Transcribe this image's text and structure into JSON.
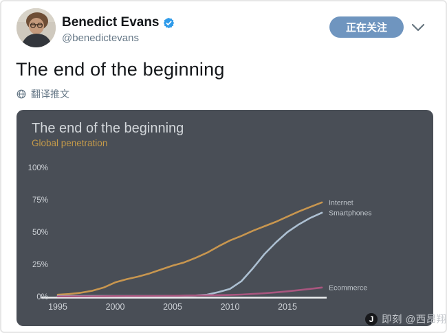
{
  "header": {
    "author": "Benedict Evans",
    "handle": "@benedictevans",
    "follow_button_label": "正在关注",
    "follow_button_color": "#6f95bf",
    "verified_color": "#2f9bea"
  },
  "tweet": {
    "text": "The end of the beginning",
    "translate_label": "翻译推文"
  },
  "watermark": {
    "logo_glyph": "J",
    "label": "即刻 @西昂翔"
  },
  "chart_data": {
    "type": "line",
    "title": "The end of the beginning",
    "subtitle": "Global penetration",
    "background": "#494e56",
    "title_color": "#d3d7db",
    "subtitle_color": "#c49a4a",
    "grid": false,
    "legend_position": "line-end-labels",
    "ylim": [
      0,
      100
    ],
    "yticks": [
      {
        "label": "0%",
        "value": 0
      },
      {
        "label": "25%",
        "value": 25
      },
      {
        "label": "50%",
        "value": 50
      },
      {
        "label": "75%",
        "value": 75
      },
      {
        "label": "100%",
        "value": 100
      }
    ],
    "xticks": [
      1995,
      2000,
      2005,
      2010,
      2015
    ],
    "years": [
      1995,
      1996,
      1997,
      1998,
      1999,
      2000,
      2001,
      2002,
      2003,
      2004,
      2005,
      2006,
      2007,
      2008,
      2009,
      2010,
      2011,
      2012,
      2013,
      2014,
      2015,
      2016,
      2017,
      2018
    ],
    "series": [
      {
        "name": "Internet",
        "color": "#c8964f",
        "values": [
          1.5,
          2,
          3,
          4.5,
          7,
          11,
          13.5,
          15.5,
          18,
          21,
          24,
          26.5,
          30,
          34,
          39,
          43.5,
          47,
          51,
          54.5,
          58,
          62,
          66,
          69.5,
          73
        ]
      },
      {
        "name": "Smartphones",
        "color": "#adc0d2",
        "values": [
          0.5,
          0.5,
          0.5,
          0.5,
          0.5,
          0.5,
          0.5,
          0.5,
          0.5,
          0.5,
          0.6,
          0.7,
          0.9,
          1.5,
          3.5,
          6,
          12,
          22,
          33,
          42,
          50,
          56,
          61,
          65
        ]
      },
      {
        "name": "Ecommerce",
        "color": "#a9567f",
        "values": [
          0.15,
          0.15,
          0.2,
          0.25,
          0.3,
          0.35,
          0.4,
          0.45,
          0.5,
          0.55,
          0.65,
          0.75,
          0.9,
          1,
          1.1,
          1.3,
          1.6,
          2.1,
          2.6,
          3.3,
          4.1,
          5,
          6,
          7
        ]
      }
    ]
  }
}
